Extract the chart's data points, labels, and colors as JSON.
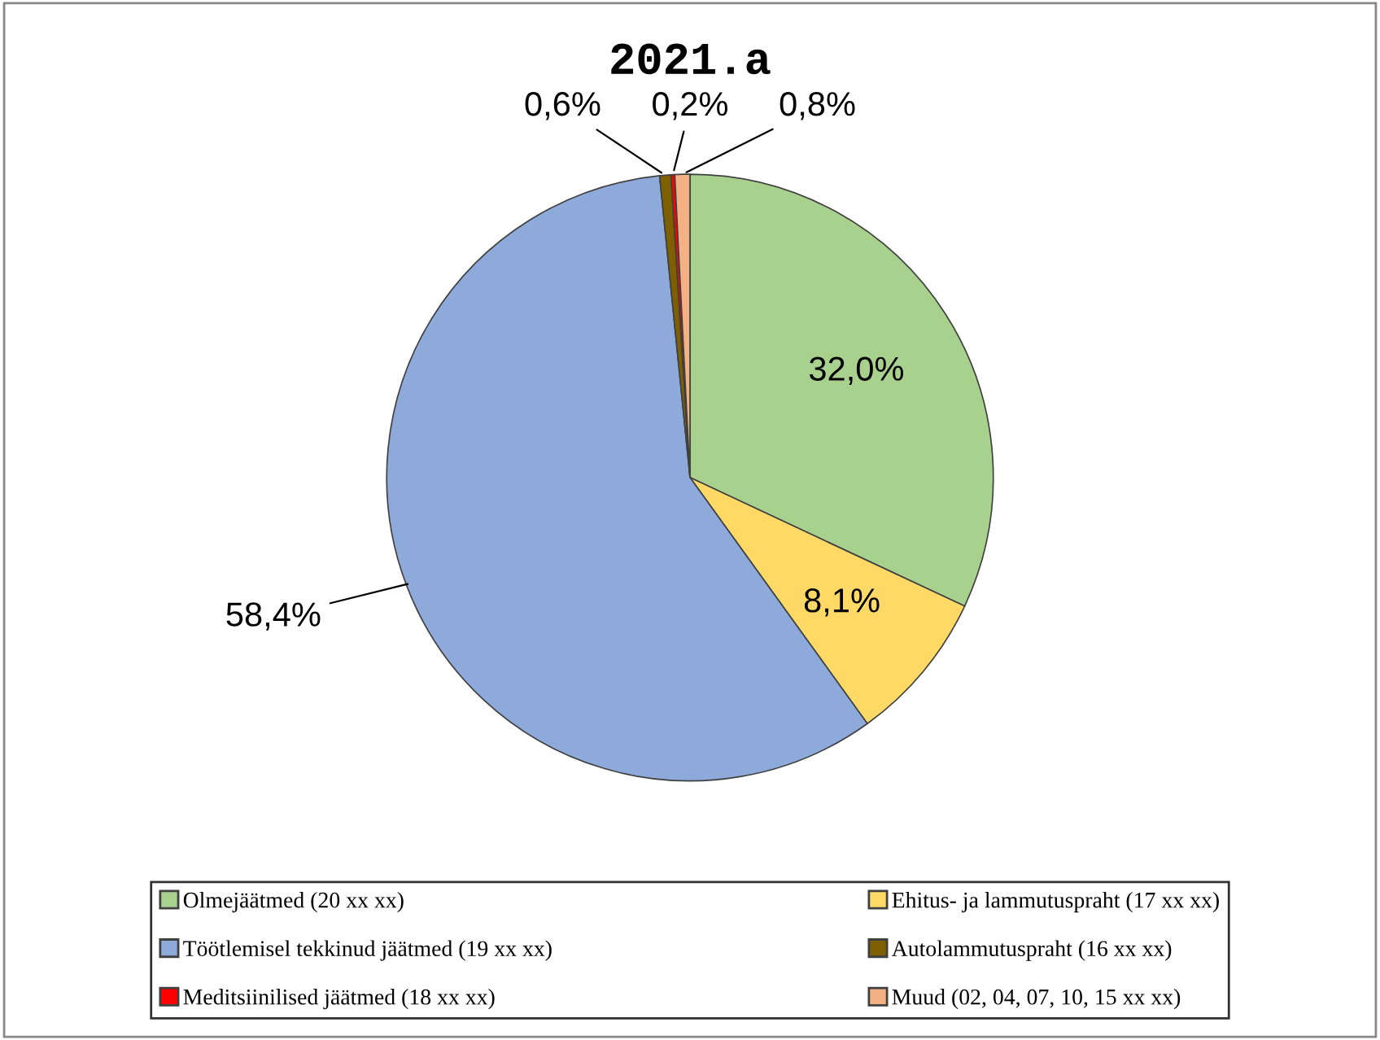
{
  "chart_data": {
    "type": "pie",
    "title": "2021.a",
    "categories": [
      "Olmejäätmed (20 xx xx)",
      "Ehitus- ja lammutuspraht (17 xx xx)",
      "Töötlemisel tekkinud jäätmed (19 xx xx)",
      "Autolammutuspraht (16 xx xx)",
      "Meditsiinilised jäätmed (18 xx xx)",
      "Muud (02, 04, 07, 10, 15 xx xx)"
    ],
    "values": [
      32.0,
      8.1,
      58.4,
      0.6,
      0.2,
      0.8
    ],
    "value_labels": [
      "32,0%",
      "8,1%",
      "58,4%",
      "0,6%",
      "0,2%",
      "0,8%"
    ],
    "colors": [
      "#a9d18e",
      "#ffd966",
      "#8eaadb",
      "#7f6000",
      "#ff0000",
      "#f4b183"
    ],
    "legend": "bottom"
  }
}
